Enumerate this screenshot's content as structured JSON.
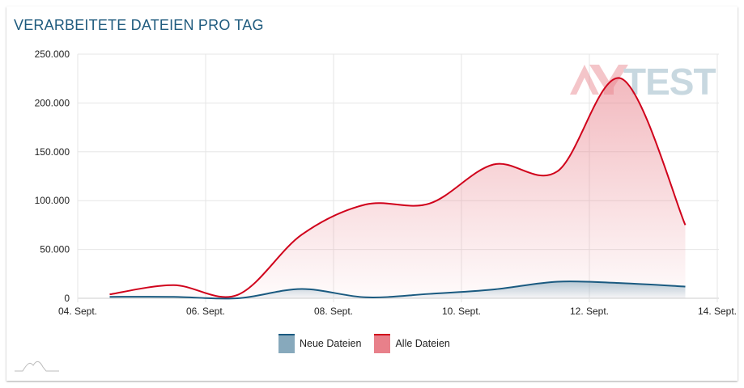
{
  "title": "VERARBEITETE DATEIEN PRO TAG",
  "logo_text": "AV-TEST",
  "colors": {
    "neue": "#1a5a80",
    "neue_fill": "#87a9bc",
    "alle": "#d0021b",
    "alle_fill": "#e8808a"
  },
  "chart_data": {
    "type": "area",
    "title": "VERARBEITETE DATEIEN PRO TAG",
    "x_unit": "day of September",
    "x": [
      4.5,
      5.5,
      6.5,
      7.5,
      8.5,
      9.5,
      10.5,
      11.5,
      12.5,
      13.5
    ],
    "series": [
      {
        "name": "Neue Dateien",
        "values": [
          1500,
          1500,
          0,
          9500,
          1000,
          4500,
          9000,
          17000,
          15500,
          12000
        ]
      },
      {
        "name": "Alle Dateien",
        "values": [
          4000,
          13500,
          3500,
          65000,
          96000,
          97000,
          137000,
          130000,
          225000,
          75000
        ]
      }
    ],
    "x_ticks": [
      {
        "v": 4,
        "label": "04. Sept."
      },
      {
        "v": 6,
        "label": "06. Sept."
      },
      {
        "v": 8,
        "label": "08. Sept."
      },
      {
        "v": 10,
        "label": "10. Sept."
      },
      {
        "v": 12,
        "label": "12. Sept."
      },
      {
        "v": 14,
        "label": "14. Sept."
      }
    ],
    "y_ticks": [
      {
        "v": 0,
        "label": "0"
      },
      {
        "v": 50000,
        "label": "50.000"
      },
      {
        "v": 100000,
        "label": "100.000"
      },
      {
        "v": 150000,
        "label": "150.000"
      },
      {
        "v": 200000,
        "label": "200.000"
      },
      {
        "v": 250000,
        "label": "250.000"
      }
    ],
    "xlim": [
      4,
      14
    ],
    "ylim": [
      0,
      250000
    ],
    "grid": true,
    "legend_position": "bottom-center"
  }
}
